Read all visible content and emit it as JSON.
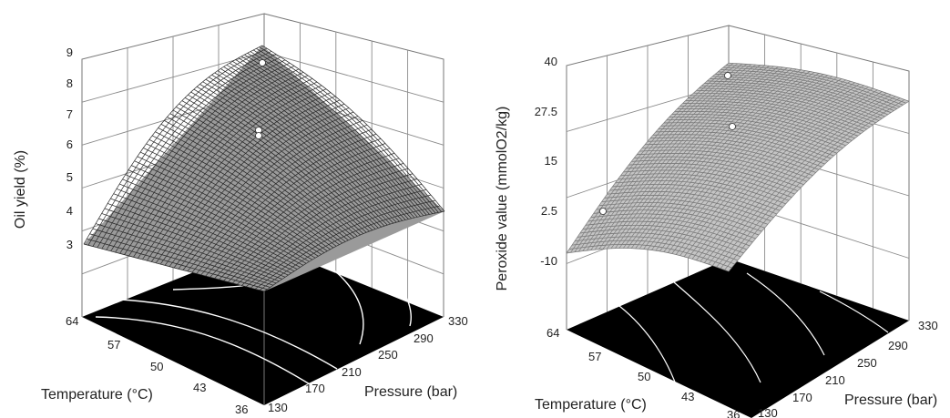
{
  "chart_data": [
    {
      "type": "surface",
      "zlabel": "Oil yield (%)",
      "xlabel": "Temperature (°C)",
      "ylabel": "Pressure (bar)",
      "z_ticks": [
        "3",
        "4",
        "5",
        "6",
        "7",
        "8",
        "9"
      ],
      "x_ticks": [
        "64",
        "57",
        "50",
        "43",
        "36"
      ],
      "y_ticks": [
        "130",
        "170",
        "210",
        "250",
        "290",
        "330"
      ],
      "zlim": [
        3,
        9
      ],
      "xlim": [
        36,
        64
      ],
      "ylim": [
        130,
        330
      ],
      "surface_samples": [
        {
          "temperature": 64,
          "pressure": 130,
          "z": 3.2
        },
        {
          "temperature": 64,
          "pressure": 330,
          "z": 9.0
        },
        {
          "temperature": 36,
          "pressure": 130,
          "z": 3.0
        },
        {
          "temperature": 36,
          "pressure": 330,
          "z": 5.6
        },
        {
          "temperature": 50,
          "pressure": 250,
          "z": 6.8
        }
      ],
      "design_points": [
        {
          "temperature": 60,
          "pressure": 300,
          "z": 8.3
        },
        {
          "temperature": 50,
          "pressure": 250,
          "z": 6.3
        },
        {
          "temperature": 50,
          "pressure": 250,
          "z": 6.1
        }
      ],
      "grid": true,
      "base_colors": {
        "floor": "#000000",
        "mesh": "#2a2a2a",
        "contour": "#ffffff"
      }
    },
    {
      "type": "surface",
      "zlabel": "Peroxide value (mmolO2/kg)",
      "xlabel": "Temperature (°C)",
      "ylabel": "Pressure (bar)",
      "z_ticks": [
        "-10",
        "2.5",
        "15",
        "27.5",
        "40"
      ],
      "x_ticks": [
        "64",
        "57",
        "50",
        "43",
        "36"
      ],
      "y_ticks": [
        "130",
        "170",
        "210",
        "250",
        "290",
        "330"
      ],
      "zlim": [
        -10,
        40
      ],
      "xlim": [
        36,
        64
      ],
      "ylim": [
        130,
        330
      ],
      "surface_samples": [
        {
          "temperature": 64,
          "pressure": 130,
          "z": -7
        },
        {
          "temperature": 64,
          "pressure": 330,
          "z": 38
        },
        {
          "temperature": 36,
          "pressure": 130,
          "z": 2
        },
        {
          "temperature": 36,
          "pressure": 330,
          "z": 25
        }
      ],
      "design_points": [
        {
          "temperature": 64,
          "pressure": 330,
          "z": 39
        },
        {
          "temperature": 50,
          "pressure": 250,
          "z": 23
        },
        {
          "temperature": 64,
          "pressure": 130,
          "z": 1
        }
      ],
      "grid": true,
      "base_colors": {
        "floor": "#000000",
        "mesh": "#7a7a7a",
        "contour": "#ffffff"
      }
    }
  ]
}
